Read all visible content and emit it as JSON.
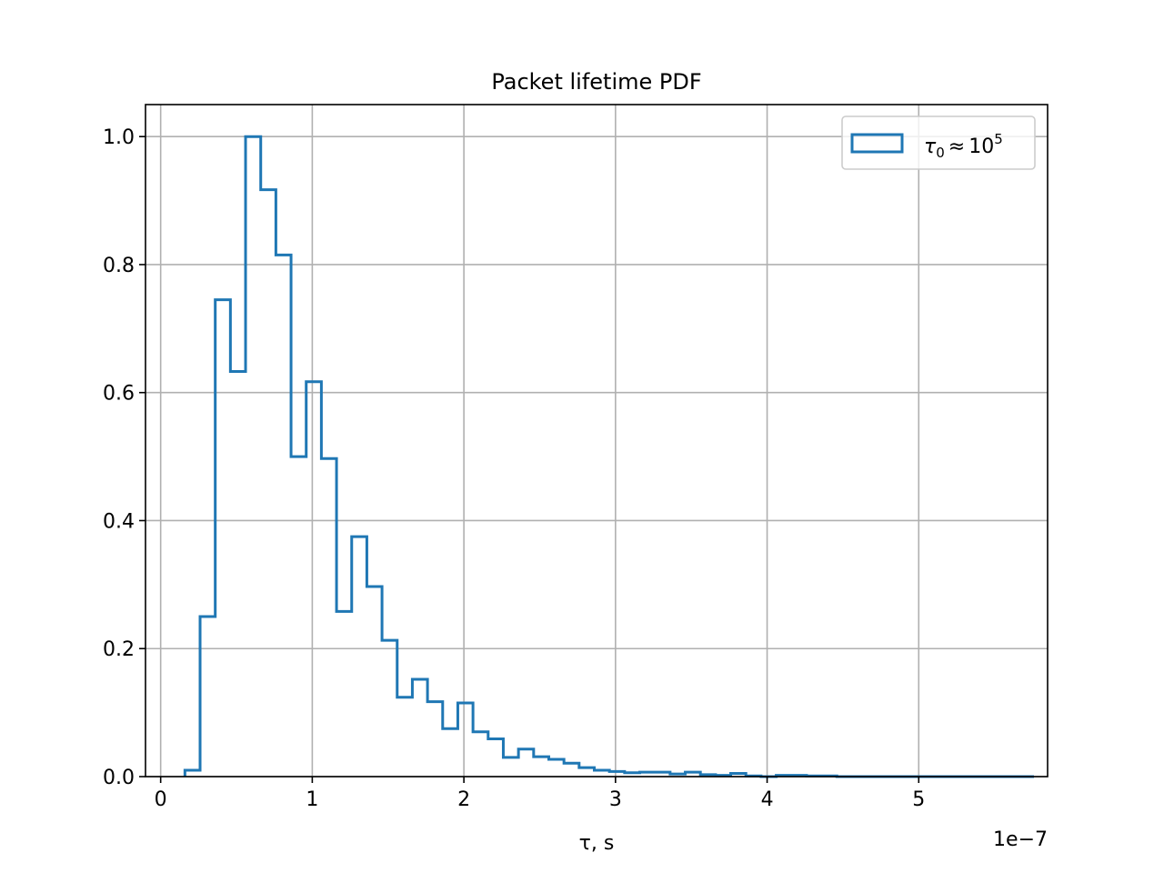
{
  "chart_data": {
    "type": "histogram",
    "title": "Packet lifetime PDF",
    "xlabel": "τ, s",
    "ylabel": "",
    "x_offset_label": "1e−7",
    "x_scale_factor": 1e-07,
    "xlim": [
      -0.1,
      5.85
    ],
    "ylim": [
      0,
      1.05
    ],
    "x_ticks": [
      0,
      1,
      2,
      3,
      4,
      5
    ],
    "x_tick_labels": [
      "0",
      "1",
      "2",
      "3",
      "4",
      "5"
    ],
    "y_ticks": [
      0.0,
      0.2,
      0.4,
      0.6,
      0.8,
      1.0
    ],
    "y_tick_labels": [
      "0.0",
      "0.2",
      "0.4",
      "0.6",
      "0.8",
      "1.0"
    ],
    "grid": true,
    "legend_placement": "top-right",
    "colors": {
      "series": "#1f77b4",
      "grid": "#b0b0b0"
    },
    "series": [
      {
        "name_base": "τ",
        "name_sub": "0",
        "name_rel": "≈",
        "name_num": "10",
        "name_sup": "5",
        "histtype": "step",
        "bin_start": 0.16,
        "bin_width": 0.1,
        "values": [
          0.01,
          0.25,
          0.745,
          0.633,
          1.0,
          0.917,
          0.815,
          0.5,
          0.617,
          0.497,
          0.258,
          0.375,
          0.297,
          0.213,
          0.124,
          0.152,
          0.117,
          0.075,
          0.115,
          0.07,
          0.059,
          0.03,
          0.043,
          0.031,
          0.027,
          0.021,
          0.014,
          0.01,
          0.008,
          0.006,
          0.007,
          0.007,
          0.004,
          0.007,
          0.003,
          0.002,
          0.005,
          0.001,
          0.0,
          0.002,
          0.002,
          0.001,
          0.001,
          0.0,
          0.0,
          0.0,
          0.0,
          0.0,
          0.0,
          0.0,
          0.0,
          0.0,
          0.0,
          0.0,
          0.0,
          0.0
        ]
      }
    ]
  }
}
